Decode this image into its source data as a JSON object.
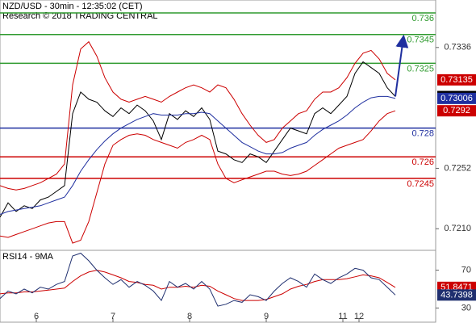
{
  "chart_data": [
    {
      "type": "line",
      "title": "NZD/USD - 30min - 12:35:02 (CET)",
      "subtitle": "Research © 2018 TRADING CENTRAL",
      "x": [
        0,
        1,
        2,
        3,
        4,
        5,
        6,
        7,
        8,
        9,
        10,
        11,
        12,
        13,
        14,
        15,
        16,
        17,
        18,
        19,
        20,
        21,
        22,
        23,
        24,
        25,
        26,
        27,
        28,
        29,
        30,
        31,
        32,
        33,
        34,
        35,
        36,
        37,
        38,
        39,
        40,
        41,
        42,
        43,
        44,
        45,
        46,
        47,
        48,
        49
      ],
      "xlim": [
        0,
        54
      ],
      "ylim": [
        0.7195,
        0.7369
      ],
      "yticks": [
        0.7336,
        0.7252,
        {
          "value": 0.721,
          "label": "0.7210"
        }
      ],
      "series": [
        {
          "color": "#000000",
          "values": [
            0.7218,
            0.7228,
            0.7222,
            0.7226,
            0.7224,
            0.723,
            0.7232,
            0.7236,
            0.724,
            0.729,
            0.7305,
            0.73,
            0.7298,
            0.7292,
            0.7288,
            0.7294,
            0.729,
            0.7296,
            0.7292,
            0.7285,
            0.7272,
            0.729,
            0.7286,
            0.7292,
            0.7288,
            0.7294,
            0.7286,
            0.7264,
            0.7262,
            0.7258,
            0.7256,
            0.7262,
            0.726,
            0.7256,
            0.7264,
            0.7272,
            0.728,
            0.7278,
            0.7276,
            0.729,
            0.7294,
            0.729,
            0.7296,
            0.7302,
            0.7318,
            0.7326,
            0.7322,
            0.7318,
            0.7308,
            0.73019
          ]
        },
        {
          "color": "#1f2f9f",
          "values": [
            0.722,
            0.7222,
            0.7223,
            0.7224,
            0.7225,
            0.7226,
            0.7228,
            0.723,
            0.7232,
            0.724,
            0.725,
            0.7258,
            0.7265,
            0.7271,
            0.7276,
            0.728,
            0.7283,
            0.7286,
            0.7288,
            0.729,
            0.7289,
            0.7289,
            0.7289,
            0.729,
            0.729,
            0.7291,
            0.729,
            0.7285,
            0.728,
            0.7275,
            0.727,
            0.7267,
            0.7264,
            0.7262,
            0.7262,
            0.7263,
            0.7266,
            0.7268,
            0.727,
            0.7275,
            0.7279,
            0.7282,
            0.7285,
            0.7289,
            0.7294,
            0.7298,
            0.7301,
            0.7302,
            0.7302,
            0.73006
          ]
        },
        {
          "color": "#cc0000",
          "values": [
            0.724,
            0.7238,
            0.7237,
            0.7238,
            0.724,
            0.7242,
            0.7245,
            0.7248,
            0.7255,
            0.731,
            0.7335,
            0.734,
            0.733,
            0.7315,
            0.7305,
            0.73,
            0.7298,
            0.73,
            0.7302,
            0.73,
            0.7298,
            0.7302,
            0.7305,
            0.7308,
            0.731,
            0.7308,
            0.7305,
            0.731,
            0.7308,
            0.73,
            0.729,
            0.7282,
            0.7275,
            0.727,
            0.7272,
            0.728,
            0.7285,
            0.729,
            0.7292,
            0.73,
            0.7305,
            0.7305,
            0.7308,
            0.7315,
            0.7325,
            0.7332,
            0.7334,
            0.7328,
            0.7318,
            0.73135
          ]
        },
        {
          "color": "#cc0000",
          "values": [
            0.7205,
            0.7204,
            0.7206,
            0.7208,
            0.721,
            0.7212,
            0.7214,
            0.7215,
            0.7215,
            0.72,
            0.7202,
            0.7215,
            0.7235,
            0.7255,
            0.7268,
            0.7272,
            0.7275,
            0.7276,
            0.7275,
            0.7272,
            0.727,
            0.7268,
            0.7266,
            0.727,
            0.7272,
            0.7275,
            0.7272,
            0.7255,
            0.7245,
            0.7242,
            0.7244,
            0.7246,
            0.7248,
            0.725,
            0.725,
            0.7248,
            0.7247,
            0.7248,
            0.725,
            0.7254,
            0.7258,
            0.7262,
            0.7266,
            0.7268,
            0.727,
            0.7272,
            0.7278,
            0.7285,
            0.729,
            0.7292
          ]
        }
      ],
      "levels": [
        {
          "value": 0.736,
          "color": "#2e9a2e"
        },
        {
          "value": 0.7345,
          "color": "#2e9a2e"
        },
        {
          "value": 0.7325,
          "color": "#2e9a2e"
        },
        {
          "value": 0.728,
          "color": "#1f2f9f"
        },
        {
          "value": 0.726,
          "color": "#cc0000"
        },
        {
          "value": 0.7245,
          "color": "#cc0000"
        }
      ]
    },
    {
      "type": "line",
      "title": "RSI14 - 9MA",
      "x": [
        0,
        1,
        2,
        3,
        4,
        5,
        6,
        7,
        8,
        9,
        10,
        11,
        12,
        13,
        14,
        15,
        16,
        17,
        18,
        19,
        20,
        21,
        22,
        23,
        24,
        25,
        26,
        27,
        28,
        29,
        30,
        31,
        32,
        33,
        34,
        35,
        36,
        37,
        38,
        39,
        40,
        41,
        42,
        43,
        44,
        45,
        46,
        47,
        48,
        49
      ],
      "xlim": [
        0,
        54
      ],
      "ylim": [
        15,
        91
      ],
      "yticks": [
        70,
        30
      ],
      "xticks": [
        {
          "value": 4.5,
          "label": "6"
        },
        {
          "value": 14,
          "label": "7"
        },
        {
          "value": 23.5,
          "label": "8"
        },
        {
          "value": 33,
          "label": "9"
        },
        {
          "value": 42.5,
          "label": "11"
        },
        {
          "value": 44.5,
          "label": "12"
        }
      ],
      "series": [
        {
          "color": "#cc0000",
          "values": [
            45,
            46,
            46,
            47,
            47,
            48,
            49,
            50,
            51,
            58,
            64,
            68,
            70,
            68,
            65,
            62,
            58,
            57,
            55,
            54,
            50,
            52,
            52,
            53,
            52,
            54,
            53,
            48,
            44,
            40,
            38,
            38,
            38,
            39,
            42,
            45,
            50,
            53,
            55,
            58,
            60,
            60,
            60,
            61,
            63,
            65,
            64,
            62,
            57,
            51.8471
          ]
        },
        {
          "color": "#1f2f6f",
          "values": [
            40,
            48,
            45,
            50,
            46,
            52,
            50,
            55,
            58,
            85,
            88,
            80,
            70,
            62,
            55,
            60,
            52,
            58,
            54,
            48,
            38,
            58,
            52,
            56,
            50,
            58,
            50,
            32,
            34,
            38,
            36,
            44,
            42,
            38,
            48,
            56,
            62,
            58,
            52,
            66,
            60,
            56,
            62,
            66,
            72,
            70,
            62,
            60,
            52,
            43.7398
          ]
        }
      ]
    }
  ]
}
